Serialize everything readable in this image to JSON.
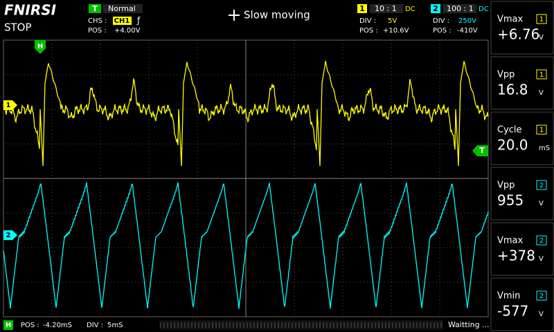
{
  "header": {
    "brand": "FNIRSI",
    "status": "STOP",
    "trigger": {
      "badge": "T",
      "mode": "Normal",
      "channel_label": "CHS :",
      "channel": "CH1",
      "edge": "ƒ",
      "position_label": "POS :",
      "position": "+4.00V"
    },
    "hint": "Slow moving",
    "channels": [
      {
        "badge": "1",
        "probe": "10 : 1",
        "coupling": "DC",
        "div_label": "DIV :",
        "div": "5V",
        "pos_label": "POS :",
        "pos": "+10.6V"
      },
      {
        "badge": "2",
        "probe": "100 : 1",
        "coupling": "DC",
        "div_label": "DIV :",
        "div": "250V",
        "pos_label": "POS :",
        "pos": "-410V"
      }
    ]
  },
  "markers": {
    "horizontal": "H",
    "ch1": "1",
    "ch2": "2",
    "trigger": "T"
  },
  "measurements": [
    {
      "name": "Vmax",
      "channel": "1",
      "value": "+6.76",
      "unit": "V"
    },
    {
      "name": "Vpp",
      "channel": "1",
      "value": "16.8",
      "unit": "V"
    },
    {
      "name": "Cycle",
      "channel": "1",
      "value": "20.0",
      "unit": "mS"
    },
    {
      "name": "Vpp",
      "channel": "2",
      "value": "955",
      "unit": "V"
    },
    {
      "name": "Vmax",
      "channel": "2",
      "value": "+378",
      "unit": "V"
    },
    {
      "name": "Vmin",
      "channel": "2",
      "value": "-577",
      "unit": "V"
    }
  ],
  "footer": {
    "badge": "H",
    "pos_label": "POS :",
    "pos": "-4.20mS",
    "div_label": "DIV :",
    "div": "5mS",
    "status": "Waitting ..."
  }
}
